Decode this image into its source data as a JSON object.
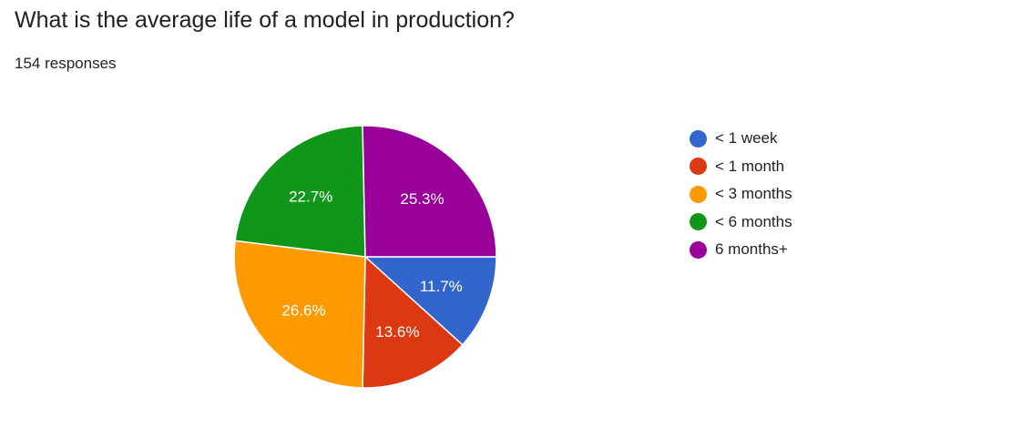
{
  "title": "What is the average life of a model in production?",
  "response_count": "154 responses",
  "chart_data": {
    "type": "pie",
    "title": "What is the average life of a model in production?",
    "slices": [
      {
        "label": "< 1 week",
        "value": 11.7,
        "display": "11.7%",
        "color": "#3366cc"
      },
      {
        "label": "< 1 month",
        "value": 13.6,
        "display": "13.6%",
        "color": "#dc3912"
      },
      {
        "label": "< 3 months",
        "value": 26.6,
        "display": "26.6%",
        "color": "#ff9900"
      },
      {
        "label": "< 6 months",
        "value": 22.7,
        "display": "22.7%",
        "color": "#109618"
      },
      {
        "label": "6 months+",
        "value": 25.3,
        "display": "25.3%",
        "color": "#990099"
      }
    ],
    "start_direction": "3 o'clock",
    "legend_position": "right"
  }
}
